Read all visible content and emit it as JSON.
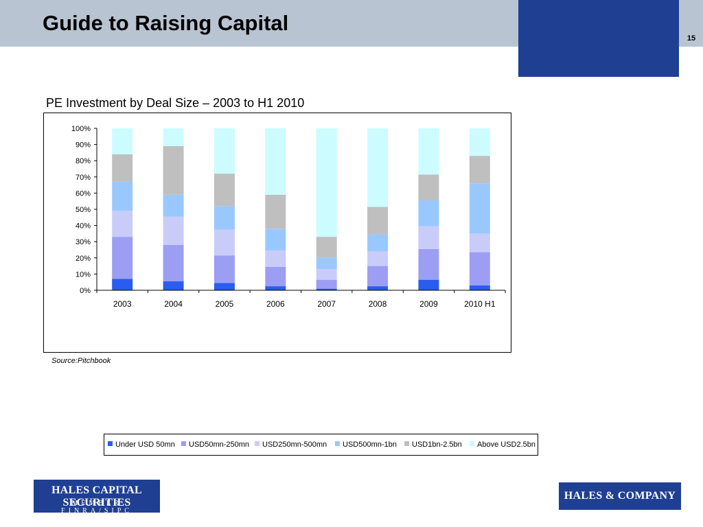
{
  "header": {
    "title": "Guide to Raising Capital",
    "page_number": "15"
  },
  "colors": {
    "header_band": "#b8c4d2",
    "brand_blue": "#1f3f92"
  },
  "chart_data": {
    "type": "bar",
    "stacked": "percent",
    "title": "PE Investment by Deal Size – 2003 to H1 2010",
    "categories": [
      "2003",
      "2004",
      "2005",
      "2006",
      "2007",
      "2008",
      "2009",
      "2010 H1"
    ],
    "yticks": [
      "0%",
      "10%",
      "20%",
      "30%",
      "40%",
      "50%",
      "60%",
      "70%",
      "80%",
      "90%",
      "100%"
    ],
    "ylim": [
      0,
      100
    ],
    "legend_position": "bottom",
    "series": [
      {
        "name": "Under USD 50mn",
        "color": "#2a5cf0",
        "values": [
          7,
          5.5,
          4.5,
          2.5,
          1,
          2.5,
          6.5,
          3
        ]
      },
      {
        "name": "USD50mn-250mn",
        "color": "#9b9ef2",
        "values": [
          26,
          22.5,
          17,
          12,
          5.5,
          12.5,
          19,
          20.5
        ]
      },
      {
        "name": "USD250mn-500mn",
        "color": "#c9ccf8",
        "values": [
          16,
          17.5,
          16,
          10,
          6.5,
          9,
          14,
          11.5
        ]
      },
      {
        "name": "USD500mn-1bn",
        "color": "#99c8ff",
        "values": [
          18,
          13.5,
          14.5,
          13.5,
          7,
          10.5,
          16,
          31
        ]
      },
      {
        "name": "USD1bn-2.5bn",
        "color": "#bfbfbf",
        "values": [
          17,
          30,
          20,
          21,
          13,
          17,
          16,
          17
        ]
      },
      {
        "name": "Above USD2.5bn",
        "color": "#ccfcff",
        "values": [
          16,
          11,
          28,
          41,
          67,
          48.5,
          28.5,
          17
        ]
      }
    ]
  },
  "footer": {
    "source": "Source:Pitchbook",
    "logo_left_line1": "HALES CAPITAL SECURITIES",
    "logo_left_line2": "MEMBER FINRA/SIPC",
    "logo_right": "HALES & COMPANY"
  }
}
